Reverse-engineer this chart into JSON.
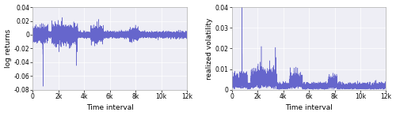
{
  "n": 12000,
  "line_color": "#6666cc",
  "left_ylabel": "log returns",
  "right_ylabel": "realized volatility",
  "xlabel": "Time interval",
  "left_ylim": [
    -0.08,
    0.04
  ],
  "right_ylim": [
    0,
    0.04
  ],
  "xlim": [
    0,
    12000
  ],
  "xtick_vals": [
    0,
    2000,
    4000,
    6000,
    8000,
    10000,
    12000
  ],
  "xtick_labels": [
    "0",
    "2k",
    "4k",
    "6k",
    "8k",
    "10k",
    "12k"
  ],
  "left_yticks": [
    -0.08,
    -0.06,
    -0.04,
    -0.02,
    0.0,
    0.02,
    0.04
  ],
  "right_yticks": [
    0,
    0.01,
    0.02,
    0.03,
    0.04
  ],
  "background_color": "#eeeef5",
  "line_width": 0.35,
  "alpha": 1.0,
  "figsize": [
    5.0,
    1.47
  ],
  "dpi": 100
}
